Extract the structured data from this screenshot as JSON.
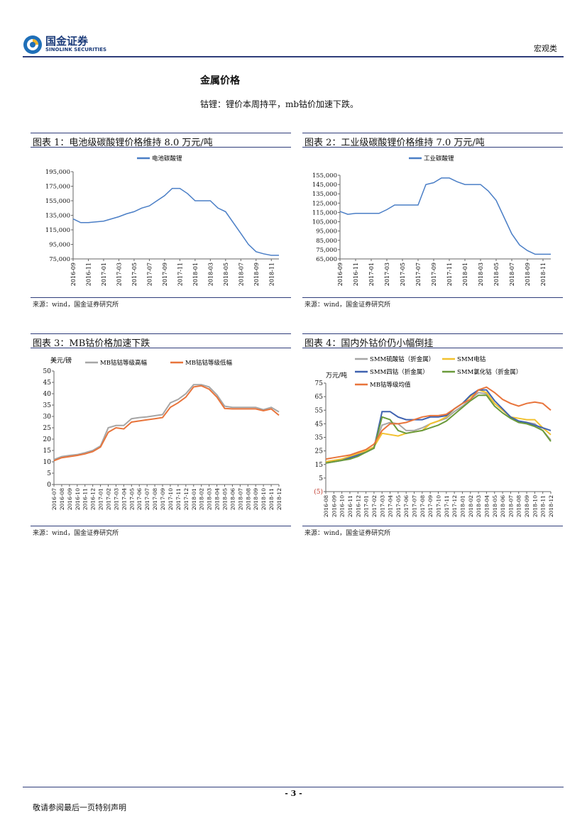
{
  "header": {
    "logo_cn": "国金证券",
    "logo_en": "SINOLINK SECURITIES",
    "category": "宏观类"
  },
  "section": {
    "title": "金属价格",
    "subtitle": "钴锂：锂价本周持平，mb钴价加速下跌。"
  },
  "figures": [
    {
      "title": "图表 1：电池级碳酸锂价格维持 8.0 万元/吨",
      "source": "来源：wind，国金证券研究所"
    },
    {
      "title": "图表 2：工业级碳酸锂价格维持 7.0 万元/吨",
      "source": "来源：wind，国金证券研究所"
    },
    {
      "title": "图表 3：MB钴价格加速下跌",
      "source": "来源：wind，国金证券研究所"
    },
    {
      "title": "图表 4：国内外钴价仍小幅倒挂",
      "source": "来源：wind，国金证券研究所"
    }
  ],
  "footer": {
    "page": "- 3 -",
    "disclaimer": "敬请参阅最后一页特别声明"
  },
  "chart_data": [
    {
      "type": "line",
      "x": [
        "2016-09",
        "2016-10",
        "2016-11",
        "2016-12",
        "2017-01",
        "2017-02",
        "2017-03",
        "2017-04",
        "2017-05",
        "2017-06",
        "2017-07",
        "2017-08",
        "2017-09",
        "2017-10",
        "2017-11",
        "2017-12",
        "2018-01",
        "2018-02",
        "2018-03",
        "2018-04",
        "2018-05",
        "2018-06",
        "2018-07",
        "2018-08",
        "2018-09",
        "2018-10",
        "2018-11",
        "2018-12"
      ],
      "x_ticks": [
        "2016-09",
        "2016-11",
        "2017-01",
        "2017-03",
        "2017-05",
        "2017-07",
        "2017-09",
        "2017-11",
        "2018-01",
        "2018-03",
        "2018-05",
        "2018-07",
        "2018-09",
        "2018-11"
      ],
      "series": [
        {
          "name": "电池碳酸锂",
          "color": "#4a7ec6",
          "values": [
            130000,
            125000,
            125000,
            126000,
            127000,
            130000,
            133000,
            137000,
            140000,
            145000,
            148000,
            155000,
            162000,
            172000,
            172000,
            165000,
            155000,
            155000,
            155000,
            145000,
            140000,
            125000,
            110000,
            95000,
            85000,
            82000,
            80000,
            80000
          ]
        }
      ],
      "ylim": [
        75000,
        195000
      ],
      "y_ticks": [
        "75,000",
        "95,000",
        "115,000",
        "135,000",
        "155,000",
        "175,000",
        "195,000"
      ],
      "legend": "top-center",
      "grid": false
    },
    {
      "type": "line",
      "x": [
        "2016-09",
        "2016-10",
        "2016-11",
        "2016-12",
        "2017-01",
        "2017-02",
        "2017-03",
        "2017-04",
        "2017-05",
        "2017-06",
        "2017-07",
        "2017-08",
        "2017-09",
        "2017-10",
        "2017-11",
        "2017-12",
        "2018-01",
        "2018-02",
        "2018-03",
        "2018-04",
        "2018-05",
        "2018-06",
        "2018-07",
        "2018-08",
        "2018-09",
        "2018-10",
        "2018-11",
        "2018-12"
      ],
      "x_ticks": [
        "2016-09",
        "2016-11",
        "2017-01",
        "2017-03",
        "2017-05",
        "2017-07",
        "2017-09",
        "2017-11",
        "2018-01",
        "2018-03",
        "2018-05",
        "2018-07",
        "2018-09",
        "2018-11"
      ],
      "series": [
        {
          "name": "工业碳酸锂",
          "color": "#4a7ec6",
          "values": [
            116000,
            113000,
            114000,
            114000,
            114000,
            114000,
            118000,
            123000,
            123000,
            123000,
            123000,
            145000,
            147000,
            152000,
            152000,
            148000,
            145000,
            145000,
            145000,
            138000,
            128000,
            110000,
            92000,
            80000,
            74000,
            70000,
            70000,
            70000
          ]
        }
      ],
      "ylim": [
        65000,
        155000
      ],
      "y_ticks": [
        "65,000",
        "75,000",
        "85,000",
        "95,000",
        "105,000",
        "115,000",
        "125,000",
        "135,000",
        "145,000",
        "155,000"
      ],
      "legend": "top-center",
      "grid": false
    },
    {
      "type": "line",
      "x": [
        "2016-07",
        "2016-08",
        "2016-09",
        "2016-10",
        "2016-11",
        "2016-12",
        "2017-01",
        "2017-02",
        "2017-03",
        "2017-04",
        "2017-05",
        "2017-06",
        "2017-07",
        "2017-08",
        "2017-09",
        "2017-10",
        "2017-11",
        "2017-12",
        "2018-01",
        "2018-02",
        "2018-03",
        "2018-04",
        "2018-05",
        "2018-06",
        "2018-07",
        "2018-08",
        "2018-09",
        "2018-10",
        "2018-11",
        "2018-12"
      ],
      "ylabel": "美元/磅",
      "series": [
        {
          "name": "MB钴钴等级高幅",
          "color": "#a6a6a6",
          "values": [
            11,
            12.3,
            12.8,
            13.2,
            14,
            15,
            17,
            25,
            26,
            26,
            29,
            29.5,
            29.8,
            30.3,
            30.8,
            36,
            37.5,
            40,
            44,
            44,
            43,
            39.5,
            34.5,
            34,
            34,
            34,
            34,
            33,
            34,
            32
          ]
        },
        {
          "name": "MB钴钴等级低幅",
          "color": "#e8743b",
          "values": [
            10.5,
            11.8,
            12.3,
            12.8,
            13.5,
            14.5,
            16.5,
            23,
            25,
            24.5,
            27.5,
            28,
            28.5,
            29,
            29.5,
            34,
            36,
            38.5,
            43,
            43.5,
            42,
            38.5,
            33.5,
            33.3,
            33.3,
            33.3,
            33.3,
            32.5,
            33.3,
            30.5
          ]
        }
      ],
      "ylim": [
        0,
        50
      ],
      "y_ticks": [
        "0",
        "5",
        "10",
        "15",
        "20",
        "25",
        "30",
        "35",
        "40",
        "45",
        "50"
      ],
      "legend": "top",
      "grid": false
    },
    {
      "type": "line",
      "x": [
        "2016-08",
        "2016-09",
        "2016-10",
        "2016-11",
        "2016-12",
        "2017-01",
        "2017-02",
        "2017-03",
        "2017-04",
        "2017-05",
        "2017-06",
        "2017-07",
        "2017-08",
        "2017-09",
        "2017-10",
        "2017-11",
        "2017-12",
        "2018-01",
        "2018-02",
        "2018-03",
        "2018-04",
        "2018-05",
        "2018-06",
        "2018-07",
        "2018-08",
        "2018-09",
        "2018-10",
        "2018-11",
        "2018-12"
      ],
      "ylabel": "万元/吨",
      "series": [
        {
          "name": "SMM硫酸钴（折金属）",
          "color": "#a6a6a6",
          "values": [
            17,
            18,
            19,
            21,
            23,
            25,
            28,
            44,
            46,
            45,
            40,
            40,
            42,
            45,
            47,
            49,
            54,
            58,
            63,
            68,
            67,
            60,
            55,
            50,
            47,
            46,
            45,
            40,
            33
          ]
        },
        {
          "name": "SMM电钴",
          "color": "#f2c12e",
          "values": [
            17,
            18,
            19,
            21,
            23,
            25,
            28,
            38,
            37,
            36,
            38,
            39,
            40,
            45,
            47,
            50,
            56,
            60,
            65,
            70,
            68,
            60,
            55,
            50,
            49,
            48,
            48,
            42,
            37
          ]
        },
        {
          "name": "SMM四钴（折金属）",
          "color": "#3f62b0",
          "values": [
            16,
            17,
            18,
            20,
            22,
            24,
            27,
            54,
            54,
            50,
            48,
            48,
            48,
            50,
            50,
            51,
            56,
            60,
            66,
            70,
            70,
            62,
            56,
            50,
            47,
            46,
            44,
            42,
            40
          ]
        },
        {
          "name": "SMM氯化钴（折金属）",
          "color": "#6a9a3b",
          "values": [
            16,
            17,
            18,
            19,
            21,
            24,
            27,
            50,
            48,
            40,
            38,
            39,
            40,
            42,
            44,
            47,
            52,
            57,
            62,
            66,
            66,
            58,
            53,
            49,
            46,
            45,
            43,
            40,
            32
          ]
        },
        {
          "name": "MB钴等级均值",
          "color": "#e8743b",
          "values": [
            19,
            20,
            21,
            22,
            24,
            26,
            30,
            40,
            45,
            45,
            46,
            48,
            50,
            51,
            51,
            52,
            56,
            60,
            63,
            70,
            72,
            68,
            63,
            60,
            58,
            60,
            61,
            60,
            55
          ]
        }
      ],
      "ylim": [
        -5,
        75
      ],
      "y_ticks": [
        "(5)",
        "5",
        "15",
        "25",
        "35",
        "45",
        "55",
        "65",
        "75"
      ],
      "legend": "top",
      "grid": false
    }
  ]
}
